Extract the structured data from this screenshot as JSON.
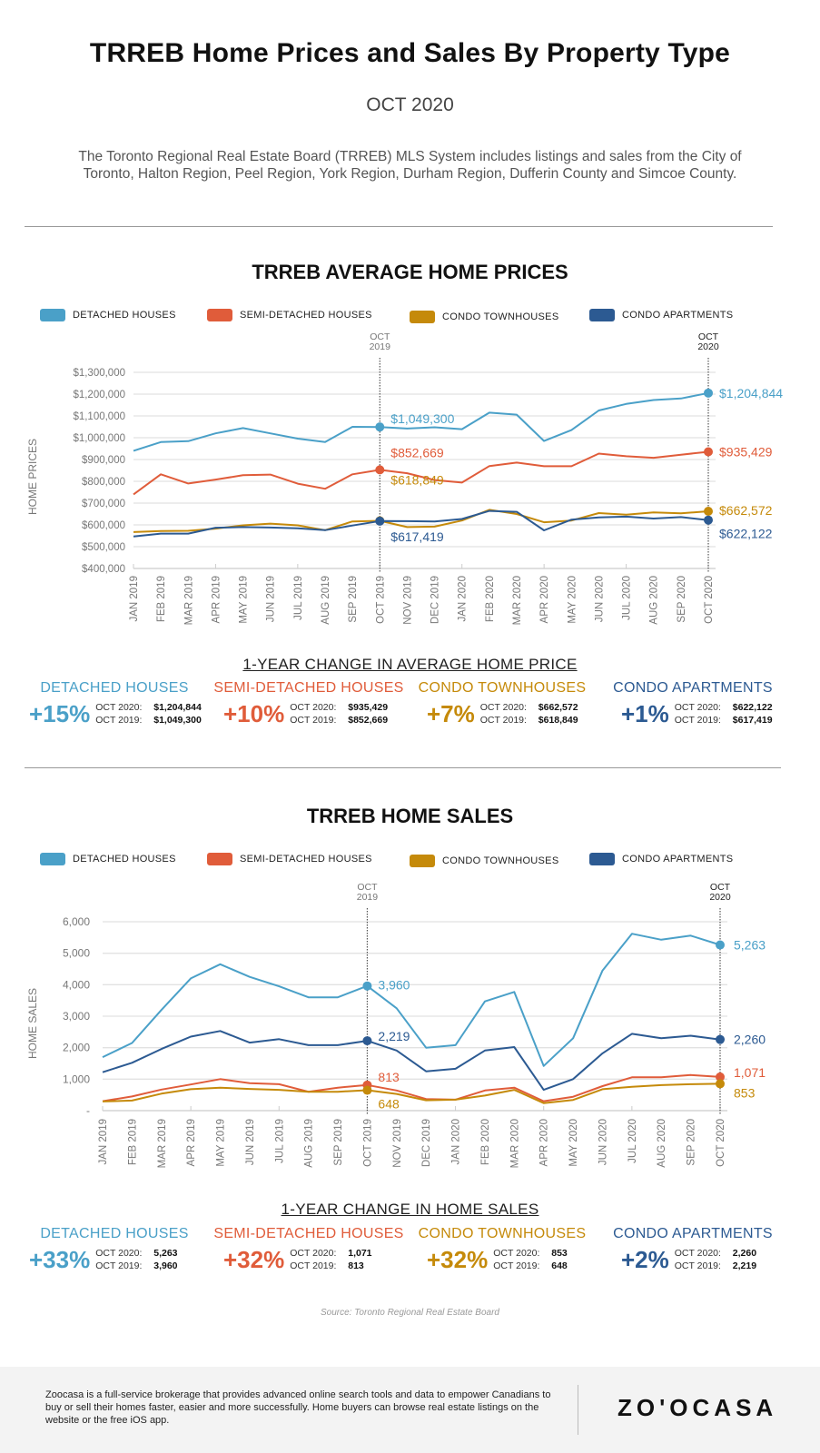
{
  "header": {
    "title": "TRREB Home Prices and Sales By Property Type",
    "date": "OCT 2020",
    "intro": "The Toronto Regional Real Estate Board (TRREB) MLS System includes listings and sales from the City of Toronto, Halton Region, Peel Region, York Region, Durham Region, Dufferin County and Simcoe County."
  },
  "colors": {
    "detached": "#4aa0c8",
    "semi": "#e05c3a",
    "townhouse": "#c58a0a",
    "apartment": "#2c5a92"
  },
  "legend": [
    {
      "label": "DETACHED HOUSES",
      "key": "detached"
    },
    {
      "label": "SEMI-DETACHED HOUSES",
      "key": "semi"
    },
    {
      "label": "CONDO TOWNHOUSES",
      "key": "townhouse"
    },
    {
      "label": "CONDO APARTMENTS",
      "key": "apartment"
    }
  ],
  "chart_data": [
    {
      "type": "line",
      "title": "TRREB AVERAGE HOME PRICES",
      "xlabel": "",
      "ylabel": "HOME PRICES",
      "ylim": [
        400000,
        1300000
      ],
      "yticks": [
        400000,
        500000,
        600000,
        700000,
        800000,
        900000,
        1000000,
        1100000,
        1200000,
        1300000
      ],
      "ytick_labels": [
        "$400,000",
        "$500,000",
        "$600,000",
        "$700,000",
        "$800,000",
        "$900,000",
        "$1,000,000",
        "$1,100,000",
        "$1,200,000",
        "$1,300,000"
      ],
      "grid": true,
      "legend_position": "top",
      "categories": [
        "JAN 2019",
        "FEB 2019",
        "MAR 2019",
        "APR 2019",
        "MAY 2019",
        "JUN 2019",
        "JUL 2019",
        "AUG 2019",
        "SEP 2019",
        "OCT 2019",
        "NOV 2019",
        "DEC 2019",
        "JAN 2020",
        "FEB 2020",
        "MAR 2020",
        "APR 2020",
        "MAY 2020",
        "JUN 2020",
        "JUL 2020",
        "AUG 2020",
        "SEP 2020",
        "OCT 2020"
      ],
      "markers": [
        {
          "category": "OCT 2019",
          "label": "OCT\n2019"
        },
        {
          "category": "OCT 2020",
          "label": "OCT\n2020"
        }
      ],
      "series": [
        {
          "name": "DETACHED HOUSES",
          "key": "detached",
          "values": [
            940000,
            980000,
            984000,
            1020000,
            1044000,
            1020000,
            996000,
            980000,
            1050000,
            1049300,
            1042000,
            1048000,
            1039000,
            1115000,
            1106000,
            985000,
            1035000,
            1125000,
            1155000,
            1173000,
            1180000,
            1204844
          ]
        },
        {
          "name": "SEMI-DETACHED HOUSES",
          "key": "semi",
          "values": [
            740000,
            832000,
            790000,
            808000,
            828000,
            831000,
            789000,
            766000,
            832000,
            852669,
            837000,
            806000,
            794000,
            870000,
            886000,
            869000,
            869000,
            927000,
            915000,
            908000,
            922000,
            935429
          ]
        },
        {
          "name": "CONDO TOWNHOUSES",
          "key": "townhouse",
          "values": [
            567000,
            572000,
            573000,
            583000,
            598000,
            606000,
            598000,
            576000,
            616000,
            618849,
            590000,
            592000,
            620000,
            669000,
            650000,
            612000,
            620000,
            654000,
            647000,
            657000,
            653000,
            662572
          ]
        },
        {
          "name": "CONDO APARTMENTS",
          "key": "apartment",
          "values": [
            547000,
            560000,
            560000,
            587000,
            590000,
            588000,
            584000,
            576000,
            597000,
            617419,
            617000,
            616000,
            627000,
            664000,
            660000,
            575000,
            624000,
            634000,
            638000,
            629000,
            636000,
            622122
          ]
        }
      ],
      "annotations": [
        {
          "series": "detached",
          "category": "OCT 2019",
          "text": "$1,049,300"
        },
        {
          "series": "semi",
          "category": "OCT 2019",
          "text": "$852,669"
        },
        {
          "series": "townhouse",
          "category": "OCT 2019",
          "text": "$618,849"
        },
        {
          "series": "apartment",
          "category": "OCT 2019",
          "text": "$617,419"
        },
        {
          "series": "detached",
          "category": "OCT 2020",
          "text": "$1,204,844"
        },
        {
          "series": "semi",
          "category": "OCT 2020",
          "text": "$935,429"
        },
        {
          "series": "townhouse",
          "category": "OCT 2020",
          "text": "$662,572"
        },
        {
          "series": "apartment",
          "category": "OCT 2020",
          "text": "$622,122"
        }
      ]
    },
    {
      "type": "line",
      "title": "TRREB HOME SALES",
      "xlabel": "",
      "ylabel": "HOME SALES",
      "ylim": [
        0,
        6000
      ],
      "yticks": [
        0,
        1000,
        2000,
        3000,
        4000,
        5000,
        6000
      ],
      "ytick_labels": [
        "-",
        "1,000",
        "2,000",
        "3,000",
        "4,000",
        "5,000",
        "6,000"
      ],
      "grid": true,
      "legend_position": "top",
      "categories": [
        "JAN 2019",
        "FEB 2019",
        "MAR 2019",
        "APR 2019",
        "MAY 2019",
        "JUN 2019",
        "JUL 2019",
        "AUG 2019",
        "SEP 2019",
        "OCT 2019",
        "NOV 2019",
        "DEC 2019",
        "JAN 2020",
        "FEB 2020",
        "MAR 2020",
        "APR 2020",
        "MAY 2020",
        "JUN 2020",
        "JUL 2020",
        "AUG 2020",
        "SEP 2020",
        "OCT 2020"
      ],
      "markers": [
        {
          "category": "OCT 2019",
          "label": "OCT\n2019"
        },
        {
          "category": "OCT 2020",
          "label": "OCT\n2020"
        }
      ],
      "series": [
        {
          "name": "DETACHED HOUSES",
          "key": "detached",
          "values": [
            1700,
            2150,
            3200,
            4200,
            4650,
            4250,
            3950,
            3600,
            3600,
            3960,
            3250,
            2000,
            2080,
            3470,
            3770,
            1420,
            2300,
            4450,
            5620,
            5430,
            5560,
            5263
          ]
        },
        {
          "name": "SEMI-DETACHED HOUSES",
          "key": "semi",
          "values": [
            300,
            450,
            670,
            830,
            1000,
            870,
            840,
            600,
            730,
            813,
            640,
            370,
            350,
            640,
            730,
            300,
            440,
            780,
            1060,
            1060,
            1130,
            1071
          ]
        },
        {
          "name": "CONDO TOWNHOUSES",
          "key": "townhouse",
          "values": [
            290,
            320,
            540,
            680,
            730,
            690,
            660,
            600,
            600,
            648,
            530,
            330,
            350,
            480,
            660,
            240,
            340,
            680,
            760,
            810,
            840,
            853
          ]
        },
        {
          "name": "CONDO APARTMENTS",
          "key": "apartment",
          "values": [
            1220,
            1520,
            1960,
            2350,
            2530,
            2160,
            2270,
            2080,
            2080,
            2219,
            1910,
            1250,
            1330,
            1910,
            2020,
            660,
            1000,
            1820,
            2440,
            2300,
            2380,
            2260
          ]
        }
      ],
      "annotations": [
        {
          "series": "detached",
          "category": "OCT 2019",
          "text": "3,960"
        },
        {
          "series": "apartment",
          "category": "OCT 2019",
          "text": "2,219"
        },
        {
          "series": "semi",
          "category": "OCT 2019",
          "text": "813"
        },
        {
          "series": "townhouse",
          "category": "OCT 2019",
          "text": "648"
        },
        {
          "series": "detached",
          "category": "OCT 2020",
          "text": "5,263"
        },
        {
          "series": "apartment",
          "category": "OCT 2020",
          "text": "2,260"
        },
        {
          "series": "semi",
          "category": "OCT 2020",
          "text": "1,071"
        },
        {
          "series": "townhouse",
          "category": "OCT 2020",
          "text": "853"
        }
      ]
    }
  ],
  "price_change": {
    "title": "1-YEAR CHANGE IN AVERAGE HOME PRICE",
    "items": [
      {
        "key": "detached",
        "name": "DETACHED HOUSES",
        "pct": "+15%",
        "k2020": "OCT 2020:",
        "v2020": "$1,204,844",
        "k2019": "OCT 2019:",
        "v2019": "$1,049,300"
      },
      {
        "key": "semi",
        "name": "SEMI-DETACHED HOUSES",
        "pct": "+10%",
        "k2020": "OCT 2020:",
        "v2020": "$935,429",
        "k2019": "OCT 2019:",
        "v2019": "$852,669"
      },
      {
        "key": "townhouse",
        "name": "CONDO TOWNHOUSES",
        "pct": "+7%",
        "k2020": "OCT 2020:",
        "v2020": "$662,572",
        "k2019": "OCT 2019:",
        "v2019": "$618,849"
      },
      {
        "key": "apartment",
        "name": "CONDO APARTMENTS",
        "pct": "+1%",
        "k2020": "OCT 2020:",
        "v2020": "$622,122",
        "k2019": "OCT 2019:",
        "v2019": "$617,419"
      }
    ]
  },
  "sales_change": {
    "title": "1-YEAR CHANGE IN HOME SALES",
    "items": [
      {
        "key": "detached",
        "name": "DETACHED HOUSES",
        "pct": "+33%",
        "k2020": "OCT 2020:",
        "v2020": "5,263",
        "k2019": "OCT 2019:",
        "v2019": "3,960"
      },
      {
        "key": "semi",
        "name": "SEMI-DETACHED HOUSES",
        "pct": "+32%",
        "k2020": "OCT 2020:",
        "v2020": "1,071",
        "k2019": "OCT 2019:",
        "v2019": "813"
      },
      {
        "key": "townhouse",
        "name": "CONDO TOWNHOUSES",
        "pct": "+32%",
        "k2020": "OCT 2020:",
        "v2020": "853",
        "k2019": "OCT 2019:",
        "v2019": "648"
      },
      {
        "key": "apartment",
        "name": "CONDO APARTMENTS",
        "pct": "+2%",
        "k2020": "OCT 2020:",
        "v2020": "2,260",
        "k2019": "OCT 2019:",
        "v2019": "2,219"
      }
    ]
  },
  "source": "Source: Toronto Regional Real Estate Board",
  "footer": {
    "text": "Zoocasa is a full-service brokerage that provides advanced online search tools and data to empower Canadians to buy or sell their homes faster, easier and more successfully. Home buyers can browse real estate listings on the website or the free iOS app.",
    "logo": "ZO'OCASA"
  }
}
